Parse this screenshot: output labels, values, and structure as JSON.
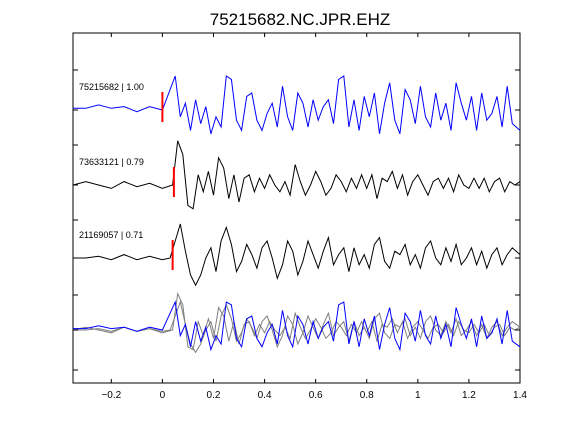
{
  "chart_data": {
    "type": "line",
    "title": "75215682.NC.JPR.EHZ",
    "xlabel": "",
    "ylabel": "",
    "xlim": [
      -0.35,
      1.4
    ],
    "x_ticks": [
      -0.2,
      0,
      0.2,
      0.4,
      0.6,
      0.8,
      1.0,
      1.2,
      1.4
    ],
    "x_tick_labels": [
      "−0.2",
      "0",
      "0.2",
      "0.4",
      "0.6",
      "0.8",
      "1",
      "1.2",
      "1.4"
    ],
    "grid": false,
    "colors": {
      "primary": "#0000ff",
      "secondary": "#000000",
      "overlay": "#7f7f7f",
      "pick": "#ff0000"
    },
    "series": [
      {
        "name": "75215682",
        "label": "75215682 | 1.00",
        "color": "#0000ff",
        "pick_time": 0.0,
        "trace": [
          [
            -0.35,
            0.05
          ],
          [
            -0.3,
            0.05
          ],
          [
            -0.25,
            0.15
          ],
          [
            -0.2,
            0.05
          ],
          [
            -0.15,
            0.1
          ],
          [
            -0.1,
            -0.05
          ],
          [
            -0.05,
            0.1
          ],
          [
            0.0,
            0.0
          ],
          [
            0.03,
            0.6
          ],
          [
            0.05,
            1.0
          ],
          [
            0.07,
            -0.2
          ],
          [
            0.09,
            0.2
          ],
          [
            0.11,
            -0.6
          ],
          [
            0.13,
            0.3
          ],
          [
            0.15,
            -0.4
          ],
          [
            0.17,
            0.1
          ],
          [
            0.19,
            -0.7
          ],
          [
            0.21,
            -0.2
          ],
          [
            0.23,
            -0.5
          ],
          [
            0.25,
            1.0
          ],
          [
            0.27,
            0.9
          ],
          [
            0.29,
            -0.3
          ],
          [
            0.31,
            -0.6
          ],
          [
            0.33,
            0.4
          ],
          [
            0.35,
            0.5
          ],
          [
            0.37,
            -0.3
          ],
          [
            0.39,
            -0.6
          ],
          [
            0.41,
            -0.1
          ],
          [
            0.43,
            0.2
          ],
          [
            0.45,
            -0.5
          ],
          [
            0.47,
            0.7
          ],
          [
            0.49,
            -0.2
          ],
          [
            0.51,
            -0.6
          ],
          [
            0.53,
            0.5
          ],
          [
            0.55,
            0.2
          ],
          [
            0.57,
            -0.5
          ],
          [
            0.59,
            0.3
          ],
          [
            0.61,
            -0.3
          ],
          [
            0.63,
            0.1
          ],
          [
            0.65,
            0.3
          ],
          [
            0.67,
            -0.4
          ],
          [
            0.69,
            0.9
          ],
          [
            0.71,
            1.0
          ],
          [
            0.73,
            -0.5
          ],
          [
            0.75,
            0.3
          ],
          [
            0.77,
            -0.6
          ],
          [
            0.79,
            0.4
          ],
          [
            0.81,
            -0.2
          ],
          [
            0.83,
            0.5
          ],
          [
            0.85,
            -0.7
          ],
          [
            0.87,
            0.2
          ],
          [
            0.89,
            0.8
          ],
          [
            0.91,
            -0.3
          ],
          [
            0.93,
            -0.7
          ],
          [
            0.95,
            0.6
          ],
          [
            0.97,
            0.3
          ],
          [
            0.99,
            -0.4
          ],
          [
            1.01,
            0.7
          ],
          [
            1.03,
            -0.2
          ],
          [
            1.05,
            -0.5
          ],
          [
            1.07,
            0.5
          ],
          [
            1.09,
            -0.3
          ],
          [
            1.11,
            0.2
          ],
          [
            1.13,
            -0.6
          ],
          [
            1.15,
            0.8
          ],
          [
            1.17,
            0.2
          ],
          [
            1.19,
            -0.3
          ],
          [
            1.21,
            0.4
          ],
          [
            1.23,
            -0.6
          ],
          [
            1.25,
            0.5
          ],
          [
            1.27,
            -0.3
          ],
          [
            1.29,
            -0.1
          ],
          [
            1.31,
            0.4
          ],
          [
            1.33,
            -0.5
          ],
          [
            1.35,
            0.7
          ],
          [
            1.37,
            -0.4
          ],
          [
            1.4,
            -0.6
          ]
        ]
      },
      {
        "name": "73633121",
        "label": "73633121 | 0.79",
        "color": "#000000",
        "pick_time": 0.045,
        "trace": [
          [
            -0.35,
            0.0
          ],
          [
            -0.3,
            0.1
          ],
          [
            -0.25,
            0.0
          ],
          [
            -0.2,
            -0.1
          ],
          [
            -0.15,
            0.1
          ],
          [
            -0.1,
            -0.05
          ],
          [
            -0.05,
            0.05
          ],
          [
            0.0,
            -0.1
          ],
          [
            0.04,
            0.0
          ],
          [
            0.06,
            1.3
          ],
          [
            0.08,
            0.9
          ],
          [
            0.1,
            -0.6
          ],
          [
            0.12,
            -0.7
          ],
          [
            0.14,
            0.3
          ],
          [
            0.16,
            -0.2
          ],
          [
            0.18,
            0.4
          ],
          [
            0.2,
            -0.3
          ],
          [
            0.22,
            0.8
          ],
          [
            0.24,
            0.5
          ],
          [
            0.26,
            -0.4
          ],
          [
            0.28,
            0.3
          ],
          [
            0.3,
            -0.5
          ],
          [
            0.32,
            0.2
          ],
          [
            0.34,
            0.3
          ],
          [
            0.36,
            -0.2
          ],
          [
            0.38,
            0.2
          ],
          [
            0.4,
            -0.1
          ],
          [
            0.42,
            0.3
          ],
          [
            0.44,
            0.0
          ],
          [
            0.46,
            -0.2
          ],
          [
            0.48,
            0.1
          ],
          [
            0.5,
            -0.3
          ],
          [
            0.52,
            0.6
          ],
          [
            0.54,
            0.1
          ],
          [
            0.56,
            -0.3
          ],
          [
            0.58,
            0.0
          ],
          [
            0.6,
            0.4
          ],
          [
            0.62,
            0.1
          ],
          [
            0.64,
            -0.3
          ],
          [
            0.66,
            -0.1
          ],
          [
            0.68,
            0.3
          ],
          [
            0.7,
            0.1
          ],
          [
            0.72,
            -0.2
          ],
          [
            0.74,
            0.2
          ],
          [
            0.76,
            -0.1
          ],
          [
            0.78,
            0.3
          ],
          [
            0.8,
            -0.1
          ],
          [
            0.82,
            0.3
          ],
          [
            0.84,
            -0.4
          ],
          [
            0.86,
            0.2
          ],
          [
            0.88,
            0.1
          ],
          [
            0.9,
            0.4
          ],
          [
            0.92,
            -0.1
          ],
          [
            0.94,
            0.3
          ],
          [
            0.96,
            -0.3
          ],
          [
            0.98,
            0.1
          ],
          [
            1.0,
            0.3
          ],
          [
            1.02,
            0.0
          ],
          [
            1.04,
            -0.3
          ],
          [
            1.06,
            0.1
          ],
          [
            1.08,
            0.2
          ],
          [
            1.1,
            -0.1
          ],
          [
            1.12,
            0.2
          ],
          [
            1.14,
            -0.2
          ],
          [
            1.16,
            0.3
          ],
          [
            1.18,
            0.0
          ],
          [
            1.2,
            -0.1
          ],
          [
            1.22,
            0.2
          ],
          [
            1.24,
            -0.1
          ],
          [
            1.26,
            0.2
          ],
          [
            1.28,
            -0.2
          ],
          [
            1.3,
            0.1
          ],
          [
            1.32,
            0.2
          ],
          [
            1.34,
            -0.2
          ],
          [
            1.36,
            0.1
          ],
          [
            1.38,
            0.0
          ],
          [
            1.4,
            0.1
          ]
        ]
      },
      {
        "name": "21169057",
        "label": "21169057 | 0.71",
        "color": "#000000",
        "pick_time": 0.04,
        "trace": [
          [
            -0.35,
            0.0
          ],
          [
            -0.3,
            0.0
          ],
          [
            -0.25,
            0.05
          ],
          [
            -0.2,
            -0.05
          ],
          [
            -0.15,
            0.1
          ],
          [
            -0.1,
            -0.05
          ],
          [
            -0.05,
            0.05
          ],
          [
            0.0,
            -0.05
          ],
          [
            0.03,
            0.0
          ],
          [
            0.05,
            0.5
          ],
          [
            0.07,
            1.0
          ],
          [
            0.09,
            0.2
          ],
          [
            0.11,
            -0.5
          ],
          [
            0.13,
            -0.8
          ],
          [
            0.15,
            -0.5
          ],
          [
            0.17,
            0.0
          ],
          [
            0.19,
            0.3
          ],
          [
            0.21,
            -0.4
          ],
          [
            0.23,
            0.5
          ],
          [
            0.25,
            0.9
          ],
          [
            0.27,
            0.4
          ],
          [
            0.29,
            -0.4
          ],
          [
            0.31,
            -0.1
          ],
          [
            0.33,
            0.4
          ],
          [
            0.35,
            0.1
          ],
          [
            0.37,
            -0.3
          ],
          [
            0.39,
            0.3
          ],
          [
            0.41,
            0.5
          ],
          [
            0.43,
            0.0
          ],
          [
            0.45,
            -0.6
          ],
          [
            0.47,
            -0.2
          ],
          [
            0.49,
            0.5
          ],
          [
            0.51,
            0.2
          ],
          [
            0.53,
            -0.5
          ],
          [
            0.55,
            -0.1
          ],
          [
            0.57,
            0.5
          ],
          [
            0.59,
            0.1
          ],
          [
            0.61,
            -0.3
          ],
          [
            0.63,
            0.2
          ],
          [
            0.65,
            0.6
          ],
          [
            0.67,
            -0.2
          ],
          [
            0.69,
            0.1
          ],
          [
            0.71,
            0.3
          ],
          [
            0.73,
            -0.4
          ],
          [
            0.75,
            0.3
          ],
          [
            0.77,
            -0.2
          ],
          [
            0.79,
            0.1
          ],
          [
            0.81,
            -0.3
          ],
          [
            0.83,
            0.4
          ],
          [
            0.85,
            0.6
          ],
          [
            0.87,
            -0.1
          ],
          [
            0.89,
            -0.3
          ],
          [
            0.91,
            0.2
          ],
          [
            0.93,
            0.1
          ],
          [
            0.95,
            0.4
          ],
          [
            0.97,
            -0.2
          ],
          [
            0.99,
            0.1
          ],
          [
            1.01,
            -0.3
          ],
          [
            1.03,
            0.3
          ],
          [
            1.05,
            0.5
          ],
          [
            1.07,
            0.0
          ],
          [
            1.09,
            -0.2
          ],
          [
            1.11,
            0.3
          ],
          [
            1.13,
            -0.1
          ],
          [
            1.15,
            0.4
          ],
          [
            1.17,
            -0.2
          ],
          [
            1.19,
            0.0
          ],
          [
            1.21,
            0.3
          ],
          [
            1.23,
            -0.2
          ],
          [
            1.25,
            0.2
          ],
          [
            1.27,
            -0.3
          ],
          [
            1.29,
            0.1
          ],
          [
            1.31,
            0.3
          ],
          [
            1.33,
            -0.2
          ],
          [
            1.35,
            0.1
          ],
          [
            1.37,
            0.3
          ],
          [
            1.4,
            0.1
          ]
        ]
      }
    ]
  }
}
